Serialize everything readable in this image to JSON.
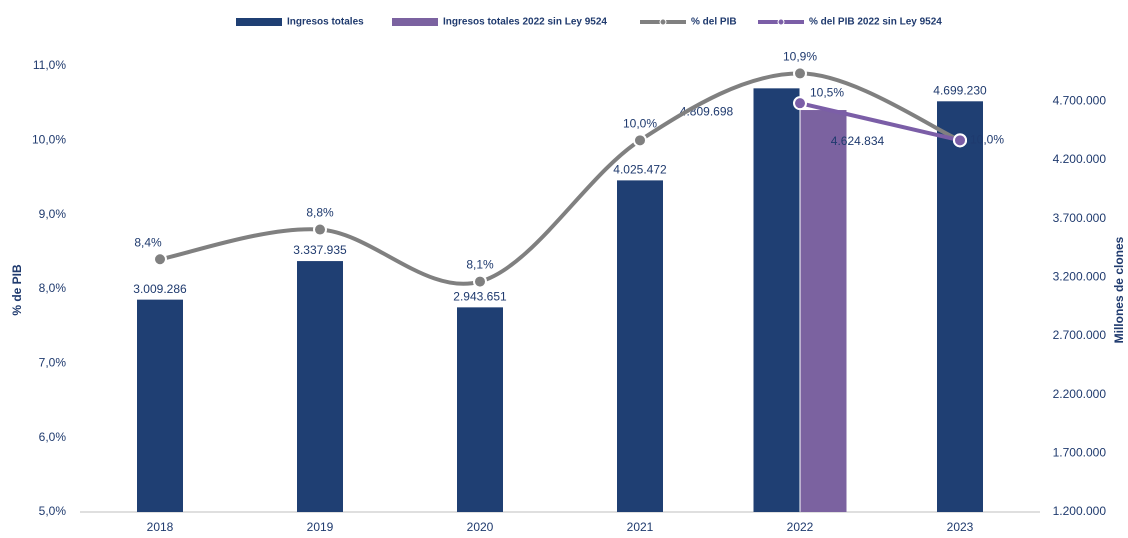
{
  "chart_data": {
    "type": "combo",
    "categories": [
      "2018",
      "2019",
      "2020",
      "2021",
      "2022",
      "2023"
    ],
    "series": [
      {
        "name": "Ingresos totales",
        "type": "bar",
        "axis": "y2",
        "color": "#1f3f73",
        "values": [
          3009286,
          3337935,
          2943651,
          4025472,
          4809698,
          4699230
        ],
        "value_labels": [
          "3.009.286",
          "3.337.935",
          "2.943.651",
          "4.025.472",
          "4.809.698",
          "4.699.230"
        ]
      },
      {
        "name": "Ingresos totales 2022 sin Ley 9524",
        "type": "bar",
        "axis": "y2",
        "color": "#7b62a0",
        "values": [
          null,
          null,
          null,
          null,
          4624834,
          null
        ],
        "value_labels": [
          null,
          null,
          null,
          null,
          "4.624.834",
          null
        ]
      },
      {
        "name": "% del PIB",
        "type": "line",
        "axis": "y",
        "color": "#808080",
        "values": [
          8.4,
          8.8,
          8.1,
          10.0,
          10.9,
          10.0
        ],
        "value_labels": [
          "8,4%",
          "8,8%",
          "8,1%",
          "10,0%",
          "10,9%",
          "10,0%"
        ]
      },
      {
        "name": "% del PIB 2022 sin Ley 9524",
        "type": "line",
        "axis": "y",
        "color": "#7b5ea7",
        "values": [
          null,
          null,
          null,
          null,
          10.5,
          10.0
        ],
        "value_labels": [
          null,
          null,
          null,
          null,
          "10,5%",
          null
        ]
      }
    ],
    "ylabel": "% de PIB",
    "y2label": "Millones de clones",
    "ylim": [
      5,
      11
    ],
    "yticks": [
      {
        "value": 5,
        "label": "5,0%"
      },
      {
        "value": 6,
        "label": "6,0%"
      },
      {
        "value": 7,
        "label": "7,0%"
      },
      {
        "value": 8,
        "label": "8,0%"
      },
      {
        "value": 9,
        "label": "9,0%"
      },
      {
        "value": 10,
        "label": "10,0%"
      },
      {
        "value": 11,
        "label": "11,0%"
      }
    ],
    "y2lim": [
      1200000,
      5000000
    ],
    "y2ticks": [
      {
        "value": 1200000,
        "label": "1.200.000"
      },
      {
        "value": 1700000,
        "label": "1.700.000"
      },
      {
        "value": 2200000,
        "label": "2.200.000"
      },
      {
        "value": 2700000,
        "label": "2.700.000"
      },
      {
        "value": 3200000,
        "label": "3.200.000"
      },
      {
        "value": 3700000,
        "label": "3.700.000"
      },
      {
        "value": 4200000,
        "label": "4.200.000"
      },
      {
        "value": 4700000,
        "label": "4.700.000"
      }
    ],
    "legend": "top",
    "grid": false
  }
}
